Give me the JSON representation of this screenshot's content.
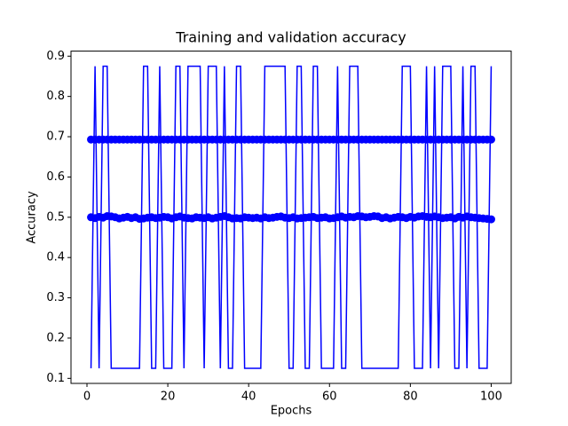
{
  "chart_data": {
    "type": "line",
    "title": "Training and validation accuracy",
    "xlabel": "Epochs",
    "ylabel": "Accuracy",
    "xlim": [
      -3.95,
      104.95
    ],
    "ylim": [
      0.0875,
      0.9125
    ],
    "xticks": [
      0,
      20,
      40,
      60,
      80,
      100
    ],
    "yticks": [
      0.1,
      0.2,
      0.3,
      0.4,
      0.5,
      0.6,
      0.7,
      0.8,
      0.9
    ],
    "x": [
      1,
      2,
      3,
      4,
      5,
      6,
      7,
      8,
      9,
      10,
      11,
      12,
      13,
      14,
      15,
      16,
      17,
      18,
      19,
      20,
      21,
      22,
      23,
      24,
      25,
      26,
      27,
      28,
      29,
      30,
      31,
      32,
      33,
      34,
      35,
      36,
      37,
      38,
      39,
      40,
      41,
      42,
      43,
      44,
      45,
      46,
      47,
      48,
      49,
      50,
      51,
      52,
      53,
      54,
      55,
      56,
      57,
      58,
      59,
      60,
      61,
      62,
      63,
      64,
      65,
      66,
      67,
      68,
      69,
      70,
      71,
      72,
      73,
      74,
      75,
      76,
      77,
      78,
      79,
      80,
      81,
      82,
      83,
      84,
      85,
      86,
      87,
      88,
      89,
      90,
      91,
      92,
      93,
      94,
      95,
      96,
      97,
      98,
      99,
      100
    ],
    "series": [
      {
        "color": "#0000ff",
        "mode": "lines",
        "values": [
          0.125,
          0.875,
          0.125,
          0.875,
          0.875,
          0.125,
          0.125,
          0.125,
          0.125,
          0.125,
          0.125,
          0.125,
          0.125,
          0.875,
          0.875,
          0.125,
          0.125,
          0.875,
          0.125,
          0.125,
          0.125,
          0.875,
          0.875,
          0.125,
          0.875,
          0.875,
          0.875,
          0.875,
          0.125,
          0.875,
          0.875,
          0.875,
          0.125,
          0.875,
          0.125,
          0.125,
          0.875,
          0.875,
          0.125,
          0.125,
          0.125,
          0.125,
          0.125,
          0.875,
          0.875,
          0.875,
          0.875,
          0.875,
          0.875,
          0.125,
          0.125,
          0.875,
          0.875,
          0.125,
          0.125,
          0.875,
          0.875,
          0.125,
          0.125,
          0.125,
          0.125,
          0.875,
          0.125,
          0.125,
          0.875,
          0.875,
          0.875,
          0.125,
          0.125,
          0.125,
          0.125,
          0.125,
          0.125,
          0.125,
          0.125,
          0.125,
          0.125,
          0.875,
          0.875,
          0.875,
          0.125,
          0.125,
          0.125,
          0.875,
          0.125,
          0.875,
          0.125,
          0.875,
          0.875,
          0.875,
          0.125,
          0.125,
          0.875,
          0.125,
          0.875,
          0.875,
          0.125,
          0.125,
          0.125,
          0.875
        ]
      },
      {
        "color": "#0000ff",
        "mode": "markers",
        "values": [
          0.693,
          0.693,
          0.693,
          0.693,
          0.693,
          0.693,
          0.693,
          0.693,
          0.693,
          0.693,
          0.693,
          0.693,
          0.693,
          0.693,
          0.693,
          0.693,
          0.693,
          0.693,
          0.693,
          0.693,
          0.693,
          0.693,
          0.693,
          0.693,
          0.693,
          0.693,
          0.693,
          0.693,
          0.693,
          0.693,
          0.693,
          0.693,
          0.693,
          0.693,
          0.693,
          0.693,
          0.693,
          0.693,
          0.693,
          0.693,
          0.693,
          0.693,
          0.693,
          0.693,
          0.693,
          0.693,
          0.693,
          0.693,
          0.693,
          0.693,
          0.693,
          0.693,
          0.693,
          0.693,
          0.693,
          0.693,
          0.693,
          0.693,
          0.693,
          0.693,
          0.693,
          0.693,
          0.693,
          0.693,
          0.693,
          0.693,
          0.693,
          0.693,
          0.693,
          0.693,
          0.693,
          0.693,
          0.693,
          0.693,
          0.693,
          0.693,
          0.693,
          0.693,
          0.693,
          0.693,
          0.693,
          0.693,
          0.693,
          0.693,
          0.693,
          0.693,
          0.693,
          0.693,
          0.693,
          0.693,
          0.693,
          0.693,
          0.693,
          0.693,
          0.693,
          0.693,
          0.693,
          0.693,
          0.693,
          0.693
        ]
      },
      {
        "color": "#0000ff",
        "mode": "markers",
        "values": [
          0.5,
          0.498,
          0.501,
          0.499,
          0.503,
          0.502,
          0.5,
          0.497,
          0.499,
          0.501,
          0.498,
          0.5,
          0.496,
          0.497,
          0.499,
          0.5,
          0.498,
          0.499,
          0.501,
          0.5,
          0.497,
          0.5,
          0.502,
          0.499,
          0.498,
          0.497,
          0.5,
          0.499,
          0.498,
          0.5,
          0.497,
          0.499,
          0.501,
          0.503,
          0.5,
          0.497,
          0.498,
          0.497,
          0.5,
          0.499,
          0.498,
          0.499,
          0.497,
          0.5,
          0.498,
          0.499,
          0.501,
          0.502,
          0.499,
          0.498,
          0.5,
          0.497,
          0.498,
          0.499,
          0.5,
          0.501,
          0.498,
          0.499,
          0.5,
          0.497,
          0.498,
          0.5,
          0.502,
          0.499,
          0.501,
          0.5,
          0.503,
          0.502,
          0.5,
          0.501,
          0.503,
          0.502,
          0.498,
          0.5,
          0.497,
          0.499,
          0.501,
          0.5,
          0.498,
          0.501,
          0.499,
          0.502,
          0.503,
          0.501,
          0.5,
          0.502,
          0.5,
          0.498,
          0.499,
          0.5,
          0.497,
          0.501,
          0.499,
          0.502,
          0.5,
          0.499,
          0.498,
          0.497,
          0.496,
          0.495
        ]
      }
    ]
  }
}
